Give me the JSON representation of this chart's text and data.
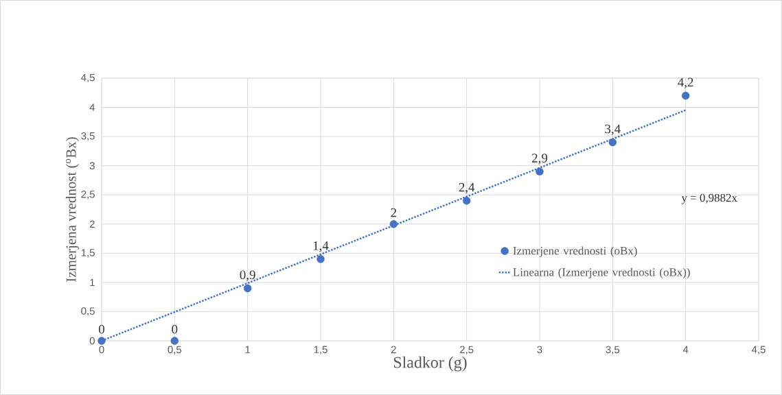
{
  "chart_data": {
    "type": "scatter",
    "xlabel": "Sladkor (g)",
    "ylabel": "Izmerjena vrednost ($^{o}$Bx)",
    "x": [
      0,
      0.5,
      1,
      1.5,
      2,
      2.5,
      3,
      3.5,
      4
    ],
    "series": [
      {
        "name": "Izmerjene vrednosti (oBx)",
        "color": "#4472c4",
        "values": [
          0,
          0,
          0.9,
          1.4,
          2,
          2.4,
          2.9,
          3.4,
          4.2
        ],
        "value_labels": [
          "0",
          "0",
          "0,9",
          "1,4",
          "2",
          "2,4",
          "2,9",
          "3,4",
          "4,2"
        ],
        "marker": "circle"
      },
      {
        "name": "Linearna (Izmerjene vrednosti (oBx))",
        "type": "line",
        "color": "#4472c4",
        "x": [
          0,
          4
        ],
        "values": [
          0,
          3.9528
        ],
        "line_style": "dotted",
        "marker": "none"
      }
    ],
    "xlim": [
      0,
      4.5
    ],
    "ylim": [
      0,
      4.5
    ],
    "xticks": [
      0,
      {
        "value": 0.5,
        "label": "0,5"
      },
      1,
      {
        "value": 1.5,
        "label": "1,5"
      },
      2,
      {
        "value": 2.5,
        "label": "2,5"
      },
      3,
      {
        "value": 3.5,
        "label": "3,5"
      },
      4,
      {
        "value": 4.5,
        "label": "4,5"
      }
    ],
    "yticks": [
      0,
      {
        "value": 0.5,
        "label": "0,5"
      },
      1,
      {
        "value": 1.5,
        "label": "1,5"
      },
      2,
      {
        "value": 2.5,
        "label": "2,5"
      },
      3,
      {
        "value": 3.5,
        "label": "3,5"
      },
      4,
      {
        "value": 4.5,
        "label": "4,5"
      }
    ],
    "grid": true,
    "legend": "right",
    "annotations": [
      "y = 0,9882x"
    ]
  }
}
